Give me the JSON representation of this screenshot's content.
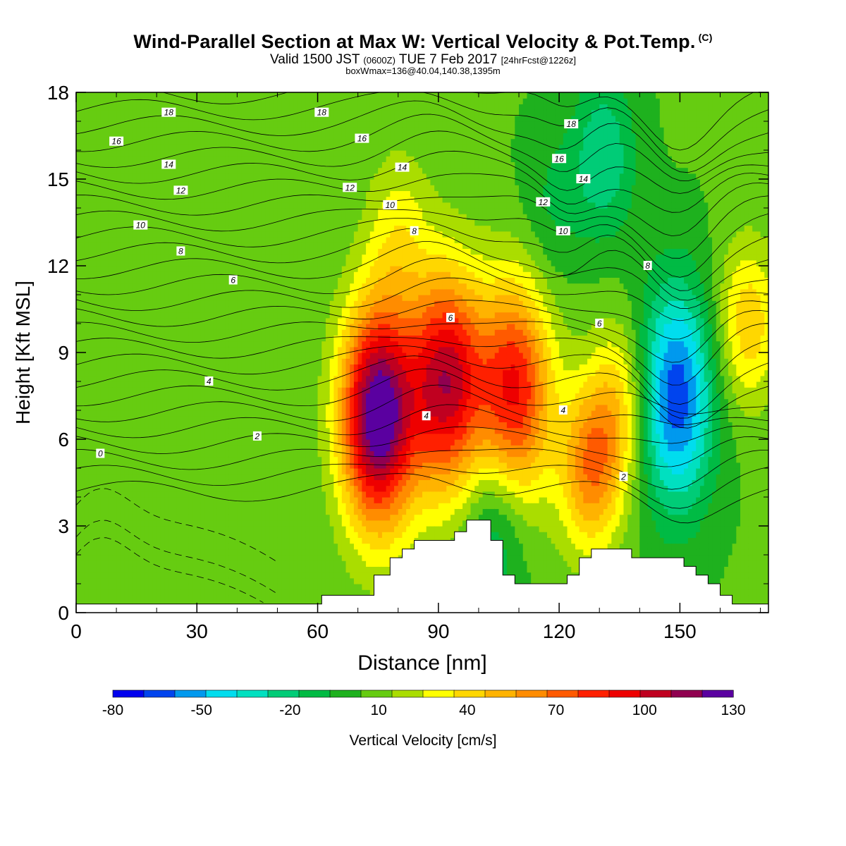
{
  "title": {
    "main": "Wind-Parallel Section at Max W: Vertical Velocity & Pot.Temp.",
    "copyright": "(C)",
    "valid_prefix": "Valid 1500 JST",
    "valid_z": "(0600Z)",
    "valid_date": "TUE 7 Feb 2017",
    "forecast": "[24hrFcst@1226z]",
    "boxwmax": "boxWmax=136@40.04,140.38,1395m"
  },
  "colorbar": {
    "label": "Vertical Velocity [cm/s]",
    "tick_labels": [
      "-80",
      "-50",
      "-20",
      "10",
      "40",
      "70",
      "100",
      "130"
    ],
    "colors": [
      "#0000ee",
      "#0044ee",
      "#0099ee",
      "#00ddee",
      "#00e0c0",
      "#00cc77",
      "#00bb44",
      "#1eb11e",
      "#66cc11",
      "#aadd00",
      "#ffff00",
      "#ffd700",
      "#ffb300",
      "#ff8c00",
      "#ff5a00",
      "#ff2000",
      "#ee0000",
      "#c00020",
      "#900050",
      "#5a00a0"
    ]
  },
  "chart_data": {
    "type": "heatmap",
    "xlabel": "Distance [nm]",
    "ylabel": "Height [Kft MSL]",
    "xlim": [
      0,
      172
    ],
    "ylim": [
      0,
      18
    ],
    "xticks": [
      0,
      30,
      60,
      90,
      120,
      150
    ],
    "yticks": [
      0,
      3,
      6,
      9,
      12,
      15,
      18
    ],
    "field": "vertical_velocity_cm_s",
    "field_range": [
      -80,
      130
    ],
    "background_value": 5,
    "updrafts": [
      {
        "x": 75,
        "y": 6.8,
        "peak": 130
      },
      {
        "x": 92,
        "y": 8.0,
        "peak": 100
      },
      {
        "x": 109,
        "y": 7.7,
        "peak": 85
      },
      {
        "x": 128,
        "y": 5.0,
        "peak": 60
      },
      {
        "x": 135,
        "y": 7.3,
        "peak": 35
      },
      {
        "x": 80,
        "y": 13.2,
        "peak": 25
      },
      {
        "x": 167,
        "y": 10.0,
        "peak": 40
      }
    ],
    "downdrafts": [
      {
        "x": 149,
        "y": 7.5,
        "peak": -70
      },
      {
        "x": 131,
        "y": 15.8,
        "peak": -30
      },
      {
        "x": 118,
        "y": 14.0,
        "peak": -12
      },
      {
        "x": 104,
        "y": 3.0,
        "peak": -25
      }
    ],
    "contour_field": "potential_temperature",
    "contour_labels": [
      {
        "text": "18",
        "x": 23,
        "y": 17.3
      },
      {
        "text": "18",
        "x": 61,
        "y": 17.3
      },
      {
        "text": "18",
        "x": 123,
        "y": 16.9
      },
      {
        "text": "16",
        "x": 10,
        "y": 16.3
      },
      {
        "text": "16",
        "x": 71,
        "y": 16.4
      },
      {
        "text": "16",
        "x": 120,
        "y": 15.7
      },
      {
        "text": "14",
        "x": 23,
        "y": 15.5
      },
      {
        "text": "14",
        "x": 81,
        "y": 15.4
      },
      {
        "text": "14",
        "x": 126,
        "y": 15.0
      },
      {
        "text": "12",
        "x": 26,
        "y": 14.6
      },
      {
        "text": "12",
        "x": 68,
        "y": 14.7
      },
      {
        "text": "12",
        "x": 116,
        "y": 14.2
      },
      {
        "text": "10",
        "x": 16,
        "y": 13.4
      },
      {
        "text": "10",
        "x": 78,
        "y": 14.1
      },
      {
        "text": "10",
        "x": 121,
        "y": 13.2
      },
      {
        "text": "8",
        "x": 26,
        "y": 12.5
      },
      {
        "text": "8",
        "x": 84,
        "y": 13.2
      },
      {
        "text": "8",
        "x": 142,
        "y": 12.0
      },
      {
        "text": "6",
        "x": 39,
        "y": 11.5
      },
      {
        "text": "6",
        "x": 93,
        "y": 10.2
      },
      {
        "text": "6",
        "x": 130,
        "y": 10.0
      },
      {
        "text": "4",
        "x": 33,
        "y": 8.0
      },
      {
        "text": "4",
        "x": 87,
        "y": 6.8
      },
      {
        "text": "4",
        "x": 121,
        "y": 7.0
      },
      {
        "text": "2",
        "x": 45,
        "y": 6.1
      },
      {
        "text": "2",
        "x": 136,
        "y": 4.7
      },
      {
        "text": "0",
        "x": 6,
        "y": 5.5
      }
    ],
    "terrain": [
      [
        0,
        0.3
      ],
      [
        61,
        0.3
      ],
      [
        61,
        0.6
      ],
      [
        74,
        0.6
      ],
      [
        74,
        1.3
      ],
      [
        78,
        1.3
      ],
      [
        78,
        1.9
      ],
      [
        81,
        1.9
      ],
      [
        81,
        2.2
      ],
      [
        84,
        2.2
      ],
      [
        84,
        2.5
      ],
      [
        94,
        2.5
      ],
      [
        94,
        2.8
      ],
      [
        97,
        2.8
      ],
      [
        97,
        3.2
      ],
      [
        103,
        3.2
      ],
      [
        103,
        2.5
      ],
      [
        106,
        2.5
      ],
      [
        106,
        1.3
      ],
      [
        109,
        1.3
      ],
      [
        109,
        1.0
      ],
      [
        122,
        1.0
      ],
      [
        122,
        1.3
      ],
      [
        125,
        1.3
      ],
      [
        125,
        1.9
      ],
      [
        128,
        1.9
      ],
      [
        128,
        2.2
      ],
      [
        138,
        2.2
      ],
      [
        138,
        1.9
      ],
      [
        151,
        1.9
      ],
      [
        151,
        1.6
      ],
      [
        154,
        1.6
      ],
      [
        154,
        1.3
      ],
      [
        157,
        1.3
      ],
      [
        157,
        1.0
      ],
      [
        160,
        1.0
      ],
      [
        160,
        0.6
      ],
      [
        163,
        0.6
      ],
      [
        163,
        0.3
      ],
      [
        172,
        0.3
      ]
    ]
  }
}
